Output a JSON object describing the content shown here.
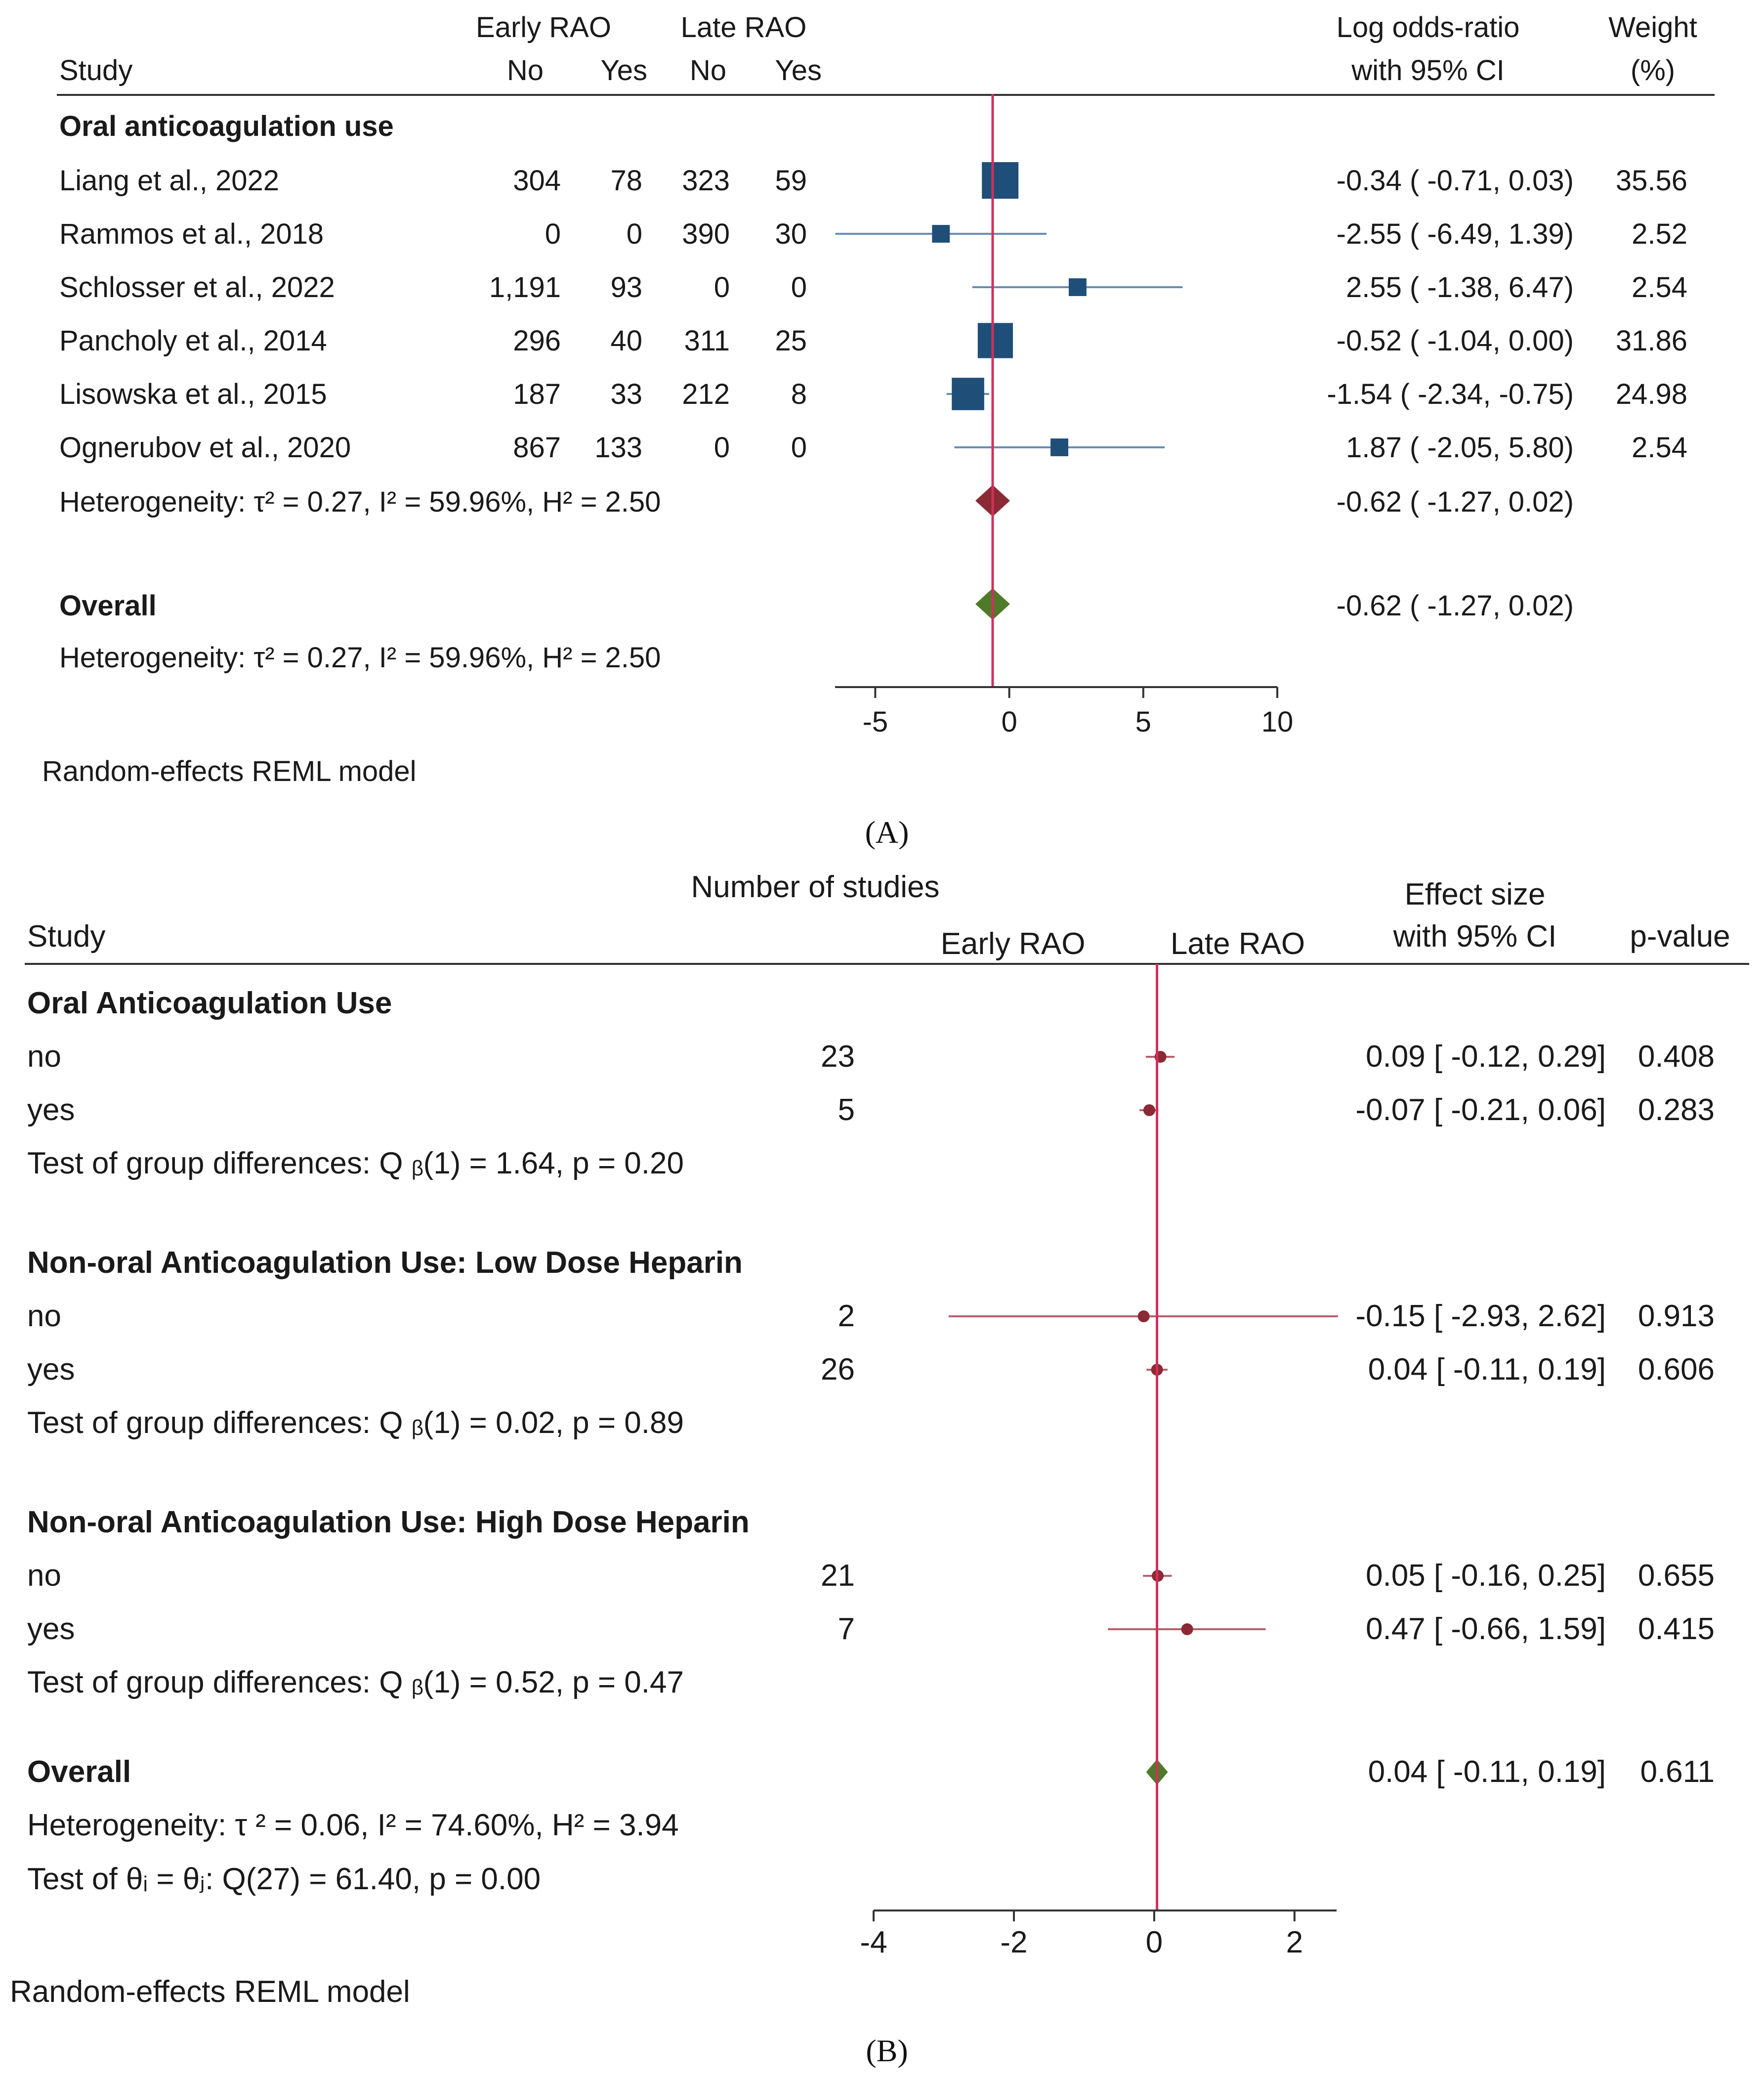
{
  "panel_a": {
    "caption": "(A)",
    "header": {
      "study": "Study",
      "early_rao": "Early RAO",
      "late_rao": "Late RAO",
      "no": "No",
      "yes": "Yes",
      "log_or_line1": "Log odds-ratio",
      "log_or_line2": "with 95% CI",
      "weight_line1": "Weight",
      "weight_line2": "(%)"
    },
    "group_title": "Oral anticoagulation use",
    "heterogeneity": "Heterogeneity: τ² = 0.27, I² = 59.96%, H² = 2.50",
    "overall_label": "Overall",
    "overall_heterogeneity": "Heterogeneity: τ² = 0.27, I² = 59.96%, H² = 2.50",
    "footnote": "Random-effects REML model",
    "colors": {
      "square": "#1f4e79",
      "ci": "#6a8cb3",
      "subgroup_diamond": "#8b2a35",
      "overall_diamond": "#4e7a2a",
      "refline": "#d22f5c"
    },
    "chart_data": {
      "type": "forest",
      "xlabel": "",
      "xlim": [
        -6.5,
        10
      ],
      "xticks": [
        -5,
        0,
        5,
        10
      ],
      "reference_line": -0.62,
      "studies": [
        {
          "name": "Liang et al., 2022",
          "early_no": "304",
          "early_yes": "78",
          "late_no": "323",
          "late_yes": "59",
          "est": -0.34,
          "lo": -0.71,
          "hi": 0.03,
          "weight": 35.56,
          "ci_text": "-0.34 ( -0.71,   0.03)",
          "weight_text": "35.56"
        },
        {
          "name": "Rammos et al., 2018",
          "early_no": "0",
          "early_yes": "0",
          "late_no": "390",
          "late_yes": "30",
          "est": -2.55,
          "lo": -6.49,
          "hi": 1.39,
          "weight": 2.52,
          "ci_text": "-2.55 ( -6.49,   1.39)",
          "weight_text": "2.52"
        },
        {
          "name": "Schlosser et al., 2022",
          "early_no": "1,191",
          "early_yes": "93",
          "late_no": "0",
          "late_yes": "0",
          "est": 2.55,
          "lo": -1.38,
          "hi": 6.47,
          "weight": 2.54,
          "ci_text": "2.55 ( -1.38,   6.47)",
          "weight_text": "2.54"
        },
        {
          "name": "Pancholy et al., 2014",
          "early_no": "296",
          "early_yes": "40",
          "late_no": "311",
          "late_yes": "25",
          "est": -0.52,
          "lo": -1.04,
          "hi": 0.0,
          "weight": 31.86,
          "ci_text": "-0.52 ( -1.04,   0.00)",
          "weight_text": "31.86"
        },
        {
          "name": "Lisowska et al., 2015",
          "early_no": "187",
          "early_yes": "33",
          "late_no": "212",
          "late_yes": "8",
          "est": -1.54,
          "lo": -2.34,
          "hi": -0.75,
          "weight": 24.98,
          "ci_text": "-1.54 ( -2.34,  -0.75)",
          "weight_text": "24.98"
        },
        {
          "name": "Ognerubov et al., 2020",
          "early_no": "867",
          "early_yes": "133",
          "late_no": "0",
          "late_yes": "0",
          "est": 1.87,
          "lo": -2.05,
          "hi": 5.8,
          "weight": 2.54,
          "ci_text": "1.87 ( -2.05,   5.80)",
          "weight_text": "2.54"
        }
      ],
      "subgroup": {
        "est": -0.62,
        "lo": -1.27,
        "hi": 0.02,
        "ci_text": "-0.62 ( -1.27,   0.02)"
      },
      "overall": {
        "est": -0.62,
        "lo": -1.27,
        "hi": 0.02,
        "ci_text": "-0.62 ( -1.27,   0.02)"
      }
    }
  },
  "panel_b": {
    "caption": "(B)",
    "header": {
      "study": "Study",
      "n_studies": "Number of studies",
      "early_rao": "Early RAO",
      "late_rao": "Late RAO",
      "effect_line1": "Effect size",
      "effect_line2": "with 95% CI",
      "pvalue": "p-value"
    },
    "overall_label": "Overall",
    "overall_heterogeneity": "Heterogeneity: τ ² = 0.06, I² = 74.60%, H² = 3.94",
    "overall_test": "Test of θᵢ = θⱼ: Q(27) = 61.40, p = 0.00",
    "footnote": "Random-effects REML model",
    "colors": {
      "point": "#8b2a35",
      "ci": "#b5616b",
      "overall_diamond": "#4e7a2a",
      "refline": "#d22f5c"
    },
    "chart_data": {
      "type": "forest",
      "xlabel": "",
      "xlim": [
        -4,
        2.6
      ],
      "xticks": [
        -4,
        -2,
        0,
        2
      ],
      "reference_line": 0.04,
      "groups": [
        {
          "title": "Oral Anticoagulation Use",
          "rows": [
            {
              "label": "no",
              "n": "23",
              "est": 0.09,
              "lo": -0.12,
              "hi": 0.29,
              "ci_text": "0.09 [ -0.12,  0.29]",
              "p": "0.408"
            },
            {
              "label": "yes",
              "n": "5",
              "est": -0.07,
              "lo": -0.21,
              "hi": 0.06,
              "ci_text": "-0.07 [ -0.21,  0.06]",
              "p": "0.283"
            }
          ],
          "test": "Test of group differences: Q ᵦ(1) = 1.64, p = 0.20"
        },
        {
          "title": "Non-oral Anticoagulation Use: Low Dose Heparin",
          "rows": [
            {
              "label": "no",
              "n": "2",
              "est": -0.15,
              "lo": -2.93,
              "hi": 2.62,
              "ci_text": "-0.15 [ -2.93,  2.62]",
              "p": "0.913"
            },
            {
              "label": "yes",
              "n": "26",
              "est": 0.04,
              "lo": -0.11,
              "hi": 0.19,
              "ci_text": "0.04 [ -0.11,  0.19]",
              "p": "0.606"
            }
          ],
          "test": "Test of group differences: Q ᵦ(1) = 0.02, p = 0.89"
        },
        {
          "title": "Non-oral Anticoagulation Use: High Dose Heparin",
          "rows": [
            {
              "label": "no",
              "n": "21",
              "est": 0.05,
              "lo": -0.16,
              "hi": 0.25,
              "ci_text": "0.05 [ -0.16,  0.25]",
              "p": "0.655"
            },
            {
              "label": "yes",
              "n": "7",
              "est": 0.47,
              "lo": -0.66,
              "hi": 1.59,
              "ci_text": "0.47 [ -0.66,  1.59]",
              "p": "0.415"
            }
          ],
          "test": "Test of group differences: Q ᵦ(1) = 0.52, p = 0.47"
        }
      ],
      "overall": {
        "est": 0.04,
        "lo": -0.11,
        "hi": 0.19,
        "ci_text": "0.04 [ -0.11,  0.19]",
        "p": "0.611"
      }
    }
  }
}
